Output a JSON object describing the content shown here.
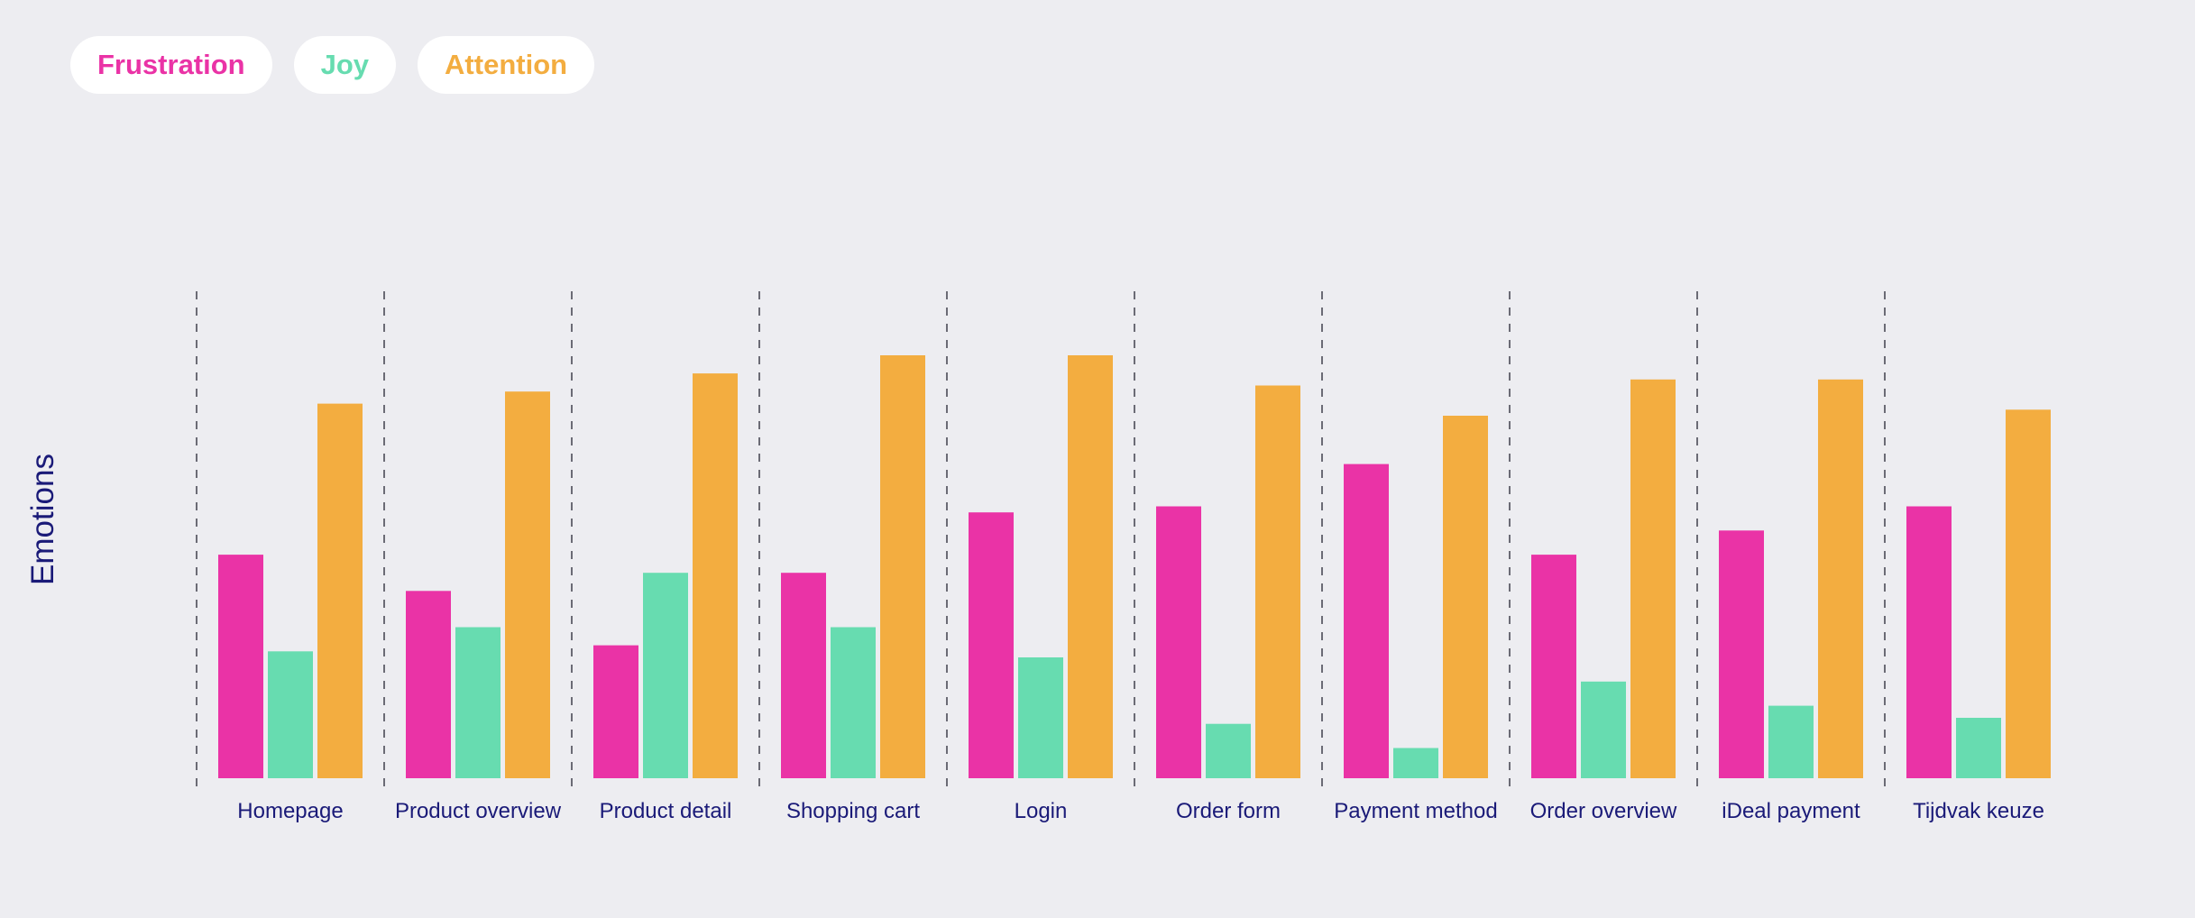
{
  "legend": [
    {
      "label": "Frustration",
      "color": "#ea33a6"
    },
    {
      "label": "Joy",
      "color": "#67dcb0"
    },
    {
      "label": "Attention",
      "color": "#f3ad40"
    }
  ],
  "colors": {
    "background": "#ededf1",
    "label_text": "#1a1a78",
    "divider": "#6b6b75"
  },
  "chart_data": {
    "type": "bar",
    "ylabel": "Emotions",
    "xlabel": "",
    "ylim": [
      0,
      100
    ],
    "grid": false,
    "legend_placement": "top-left",
    "categories": [
      "Homepage",
      "Product overview",
      "Product detail",
      "Shopping cart",
      "Login",
      "Order form",
      "Payment method",
      "Order overview",
      "iDeal payment",
      "Tijdvak keuze"
    ],
    "series": [
      {
        "name": "Frustration",
        "values": [
          37,
          31,
          22,
          34,
          44,
          45,
          52,
          37,
          41,
          45
        ]
      },
      {
        "name": "Joy",
        "values": [
          21,
          25,
          34,
          25,
          20,
          9,
          5,
          16,
          12,
          10
        ]
      },
      {
        "name": "Attention",
        "values": [
          62,
          64,
          67,
          70,
          70,
          65,
          60,
          66,
          66,
          61
        ]
      }
    ]
  }
}
